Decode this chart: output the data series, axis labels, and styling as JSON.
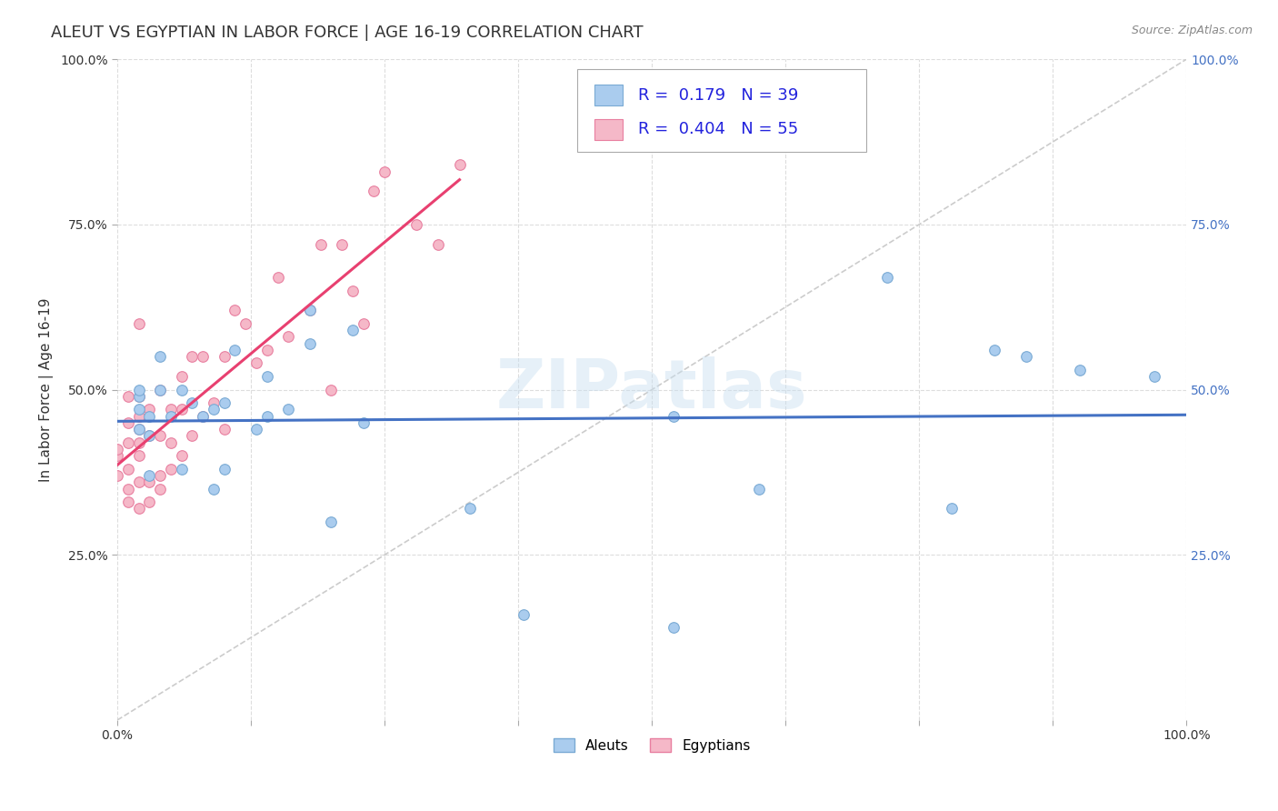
{
  "title": "ALEUT VS EGYPTIAN IN LABOR FORCE | AGE 16-19 CORRELATION CHART",
  "source_text": "Source: ZipAtlas.com",
  "ylabel": "In Labor Force | Age 16-19",
  "xlim": [
    0.0,
    1.0
  ],
  "ylim": [
    0.0,
    1.0
  ],
  "xtick_vals": [
    0.0,
    0.125,
    0.25,
    0.375,
    0.5,
    0.625,
    0.75,
    0.875,
    1.0
  ],
  "xtick_label_show": {
    "0.0": "0.0%",
    "1.0": "100.0%"
  },
  "ytick_vals": [
    0.25,
    0.5,
    0.75,
    1.0
  ],
  "ytick_labels": [
    "25.0%",
    "50.0%",
    "75.0%",
    "100.0%"
  ],
  "aleut_color": "#aaccee",
  "aleut_edge_color": "#7aaad4",
  "egyptian_color": "#f5b8c8",
  "egyptian_edge_color": "#e87fa0",
  "aleut_R": 0.179,
  "aleut_N": 39,
  "egyptian_R": 0.404,
  "egyptian_N": 55,
  "aleut_line_color": "#4472c4",
  "egyptian_line_color": "#e84070",
  "diagonal_color": "#cccccc",
  "watermark": "ZIPatlas",
  "background_color": "#ffffff",
  "grid_color": "#dddddd",
  "aleut_x": [
    0.02,
    0.02,
    0.02,
    0.02,
    0.03,
    0.03,
    0.03,
    0.04,
    0.04,
    0.05,
    0.06,
    0.06,
    0.07,
    0.08,
    0.09,
    0.09,
    0.1,
    0.1,
    0.11,
    0.13,
    0.14,
    0.14,
    0.16,
    0.18,
    0.18,
    0.2,
    0.22,
    0.23,
    0.33,
    0.38,
    0.52,
    0.52,
    0.6,
    0.72,
    0.78,
    0.82,
    0.85,
    0.9,
    0.97
  ],
  "aleut_y": [
    0.44,
    0.47,
    0.49,
    0.5,
    0.37,
    0.43,
    0.46,
    0.5,
    0.55,
    0.46,
    0.38,
    0.5,
    0.48,
    0.46,
    0.35,
    0.47,
    0.48,
    0.38,
    0.56,
    0.44,
    0.46,
    0.52,
    0.47,
    0.57,
    0.62,
    0.3,
    0.59,
    0.45,
    0.32,
    0.16,
    0.14,
    0.46,
    0.35,
    0.67,
    0.32,
    0.56,
    0.55,
    0.53,
    0.52
  ],
  "egyptian_x": [
    0.0,
    0.0,
    0.0,
    0.01,
    0.01,
    0.01,
    0.01,
    0.01,
    0.01,
    0.02,
    0.02,
    0.02,
    0.02,
    0.02,
    0.02,
    0.02,
    0.02,
    0.03,
    0.03,
    0.03,
    0.03,
    0.04,
    0.04,
    0.04,
    0.04,
    0.05,
    0.05,
    0.05,
    0.06,
    0.06,
    0.06,
    0.07,
    0.07,
    0.08,
    0.08,
    0.09,
    0.1,
    0.1,
    0.11,
    0.12,
    0.13,
    0.14,
    0.15,
    0.16,
    0.18,
    0.19,
    0.2,
    0.21,
    0.22,
    0.23,
    0.24,
    0.25,
    0.28,
    0.3,
    0.32
  ],
  "egyptian_y": [
    0.37,
    0.4,
    0.41,
    0.33,
    0.35,
    0.38,
    0.42,
    0.45,
    0.49,
    0.32,
    0.36,
    0.4,
    0.42,
    0.44,
    0.46,
    0.49,
    0.6,
    0.33,
    0.36,
    0.43,
    0.47,
    0.35,
    0.37,
    0.43,
    0.5,
    0.38,
    0.42,
    0.47,
    0.4,
    0.47,
    0.52,
    0.43,
    0.55,
    0.46,
    0.55,
    0.48,
    0.44,
    0.55,
    0.62,
    0.6,
    0.54,
    0.56,
    0.67,
    0.58,
    0.62,
    0.72,
    0.5,
    0.72,
    0.65,
    0.6,
    0.8,
    0.83,
    0.75,
    0.72,
    0.84
  ],
  "title_fontsize": 13,
  "axis_label_fontsize": 11,
  "tick_fontsize": 10,
  "legend_fontsize": 13,
  "marker_size": 70
}
